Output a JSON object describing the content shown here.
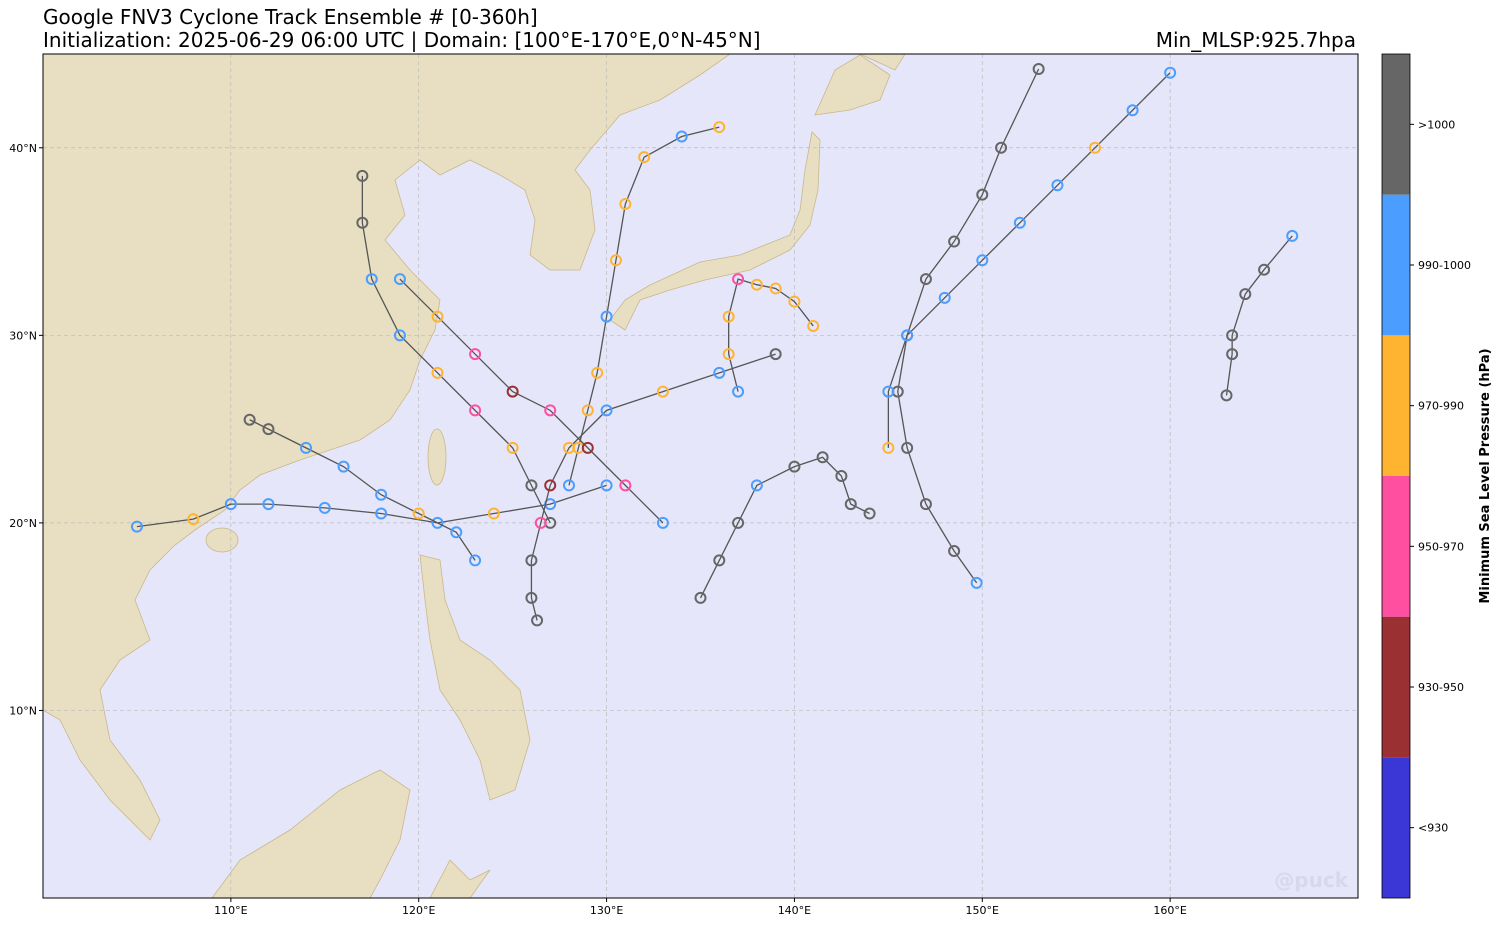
{
  "chart_data": {
    "type": "track-map",
    "title": "Google FNV3 Cyclone Track Ensemble # [0-360h]",
    "subtitle": "Initialization: 2025-06-29 06:00 UTC | Domain: [100°E-170°E,0°N-45°N]",
    "annotation": "Min_MLSP:925.7hpa",
    "watermark": "@puck",
    "xlim": [
      100,
      170
    ],
    "ylim": [
      0,
      45
    ],
    "xticks": [
      {
        "value": 110,
        "label": "110°E"
      },
      {
        "value": 120,
        "label": "120°E"
      },
      {
        "value": 130,
        "label": "130°E"
      },
      {
        "value": 140,
        "label": "140°E"
      },
      {
        "value": 150,
        "label": "150°E"
      },
      {
        "value": 160,
        "label": "160°E"
      }
    ],
    "yticks": [
      {
        "value": 10,
        "label": "10°N"
      },
      {
        "value": 20,
        "label": "20°N"
      },
      {
        "value": 30,
        "label": "30°N"
      },
      {
        "value": 40,
        "label": "40°N"
      }
    ],
    "grid": true,
    "colorbar": {
      "label": "Minimum Sea Level Pressure (hPa)",
      "levels": [
        {
          "label": "<930",
          "color": "#3a37d6"
        },
        {
          "label": "930-950",
          "color": "#9b3032"
        },
        {
          "label": "950-970",
          "color": "#ff4fa0"
        },
        {
          "label": "970-990",
          "color": "#ffb431"
        },
        {
          "label": "990-1000",
          "color": "#4b9dff"
        },
        {
          "label": ">1000",
          "color": "#666666"
        }
      ]
    },
    "tracks": [
      {
        "lon": [
          130,
          127,
          124,
          121,
          118,
          115,
          112,
          110,
          108,
          105
        ],
        "lat": [
          22,
          21,
          20.5,
          20,
          20.5,
          20.8,
          21,
          21,
          20.2,
          19.8
        ],
        "levels": [
          "990-1000",
          "990-1000",
          "970-990",
          "990-1000",
          "990-1000",
          "990-1000",
          "990-1000",
          "990-1000",
          "970-990",
          "990-1000"
        ]
      },
      {
        "lon": [
          127,
          126,
          125,
          123,
          121,
          119,
          117.5,
          117,
          117
        ],
        "lat": [
          20,
          22,
          24,
          26,
          28,
          30,
          33,
          36,
          38.5
        ],
        "levels": [
          ">1000",
          ">1000",
          "970-990",
          "950-970",
          "970-990",
          "990-1000",
          "990-1000",
          ">1000",
          ">1000"
        ]
      },
      {
        "lon": [
          128,
          128.5,
          129,
          129.5,
          130,
          130.5,
          131,
          132,
          134,
          136
        ],
        "lat": [
          22,
          24,
          26,
          28,
          31,
          34,
          37,
          39.5,
          40.6,
          41.1
        ],
        "levels": [
          "990-1000",
          "970-990",
          "970-990",
          "970-990",
          "990-1000",
          "970-990",
          "970-990",
          "970-990",
          "990-1000",
          "970-990"
        ]
      },
      {
        "lon": [
          133,
          131,
          129,
          127,
          125,
          123,
          121,
          119
        ],
        "lat": [
          20,
          22,
          24,
          26,
          27,
          29,
          31,
          33
        ],
        "levels": [
          "990-1000",
          "950-970",
          "930-950",
          "950-970",
          "930-950",
          "950-970",
          "970-990",
          "990-1000"
        ]
      },
      {
        "lon": [
          149.7,
          148.5,
          147,
          146,
          145.5,
          146,
          147,
          148.5,
          150,
          151,
          153
        ],
        "lat": [
          16.8,
          18.5,
          21,
          24,
          27,
          30,
          33,
          35,
          37.5,
          40,
          44.2
        ],
        "levels": [
          "990-1000",
          ">1000",
          ">1000",
          ">1000",
          ">1000",
          ">1000",
          ">1000",
          ">1000",
          ">1000",
          ">1000",
          ">1000"
        ]
      },
      {
        "lon": [
          145,
          145,
          146,
          148,
          150,
          152,
          154,
          156,
          158,
          160
        ],
        "lat": [
          24,
          27,
          30,
          32,
          34,
          36,
          38,
          40,
          42,
          44
        ],
        "levels": [
          "970-990",
          "990-1000",
          "990-1000",
          "990-1000",
          "990-1000",
          "990-1000",
          "990-1000",
          "970-990",
          "990-1000",
          "990-1000"
        ]
      },
      {
        "lon": [
          163,
          163.3,
          163.3,
          164,
          165,
          166.5
        ],
        "lat": [
          26.8,
          29,
          30,
          32.2,
          33.5,
          35.3
        ],
        "levels": [
          ">1000",
          ">1000",
          ">1000",
          ">1000",
          ">1000",
          "990-1000"
        ]
      },
      {
        "lon": [
          137,
          136.5,
          136.5,
          137,
          138,
          139,
          140,
          141
        ],
        "lat": [
          27,
          29,
          31,
          33,
          32.7,
          32.5,
          31.8,
          30.5
        ],
        "levels": [
          "990-1000",
          "970-990",
          "970-990",
          "950-970",
          "970-990",
          "970-990",
          "970-990",
          "970-990"
        ]
      },
      {
        "lon": [
          135,
          136,
          137,
          138,
          140,
          141.5,
          142.5,
          143,
          144
        ],
        "lat": [
          16,
          18,
          20,
          22,
          23,
          23.5,
          22.5,
          21,
          20.5
        ],
        "levels": [
          ">1000",
          ">1000",
          ">1000",
          "990-1000",
          ">1000",
          ">1000",
          ">1000",
          ">1000",
          ">1000"
        ]
      },
      {
        "lon": [
          123,
          122,
          120,
          118,
          116,
          114,
          112,
          111
        ],
        "lat": [
          18,
          19.5,
          20.5,
          21.5,
          23,
          24,
          25,
          25.5
        ],
        "levels": [
          "990-1000",
          "990-1000",
          "970-990",
          "990-1000",
          "990-1000",
          "990-1000",
          ">1000",
          ">1000"
        ]
      },
      {
        "lon": [
          126.3,
          126,
          126,
          126.5,
          127,
          128,
          130,
          133,
          136,
          139
        ],
        "lat": [
          14.8,
          16,
          18,
          20,
          22,
          24,
          26,
          27,
          28,
          29
        ],
        "levels": [
          ">1000",
          ">1000",
          ">1000",
          "950-970",
          "930-950",
          "970-990",
          "990-1000",
          "970-990",
          "990-1000",
          ">1000"
        ]
      }
    ]
  }
}
